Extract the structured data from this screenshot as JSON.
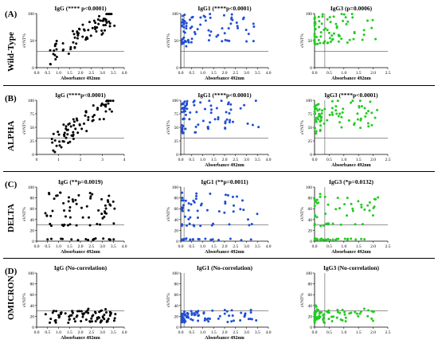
{
  "figure": {
    "rows": [
      {
        "letter": "(A)",
        "variant": "Wild-Type",
        "panels": [
          {
            "title": "IgG (**** p<0.0001)",
            "color": "#000000",
            "xlim": [
              0,
              4.0
            ],
            "xticks": [
              0,
              0.5,
              1.0,
              1.5,
              2.0,
              2.5,
              3.0,
              3.5,
              4.0
            ],
            "ylim": [
              0,
              100
            ],
            "yticks": [
              0,
              50,
              100
            ],
            "xlabel": "Absorbance 492nm",
            "ylabel": "sVNT%",
            "hline": 30,
            "vline": null,
            "seed": 11,
            "rel": "pos",
            "xdist": [
              0.4,
              3.6
            ]
          },
          {
            "title": "IgG1 (****p<0.0001)",
            "color": "#1f4fd6",
            "xlim": [
              0,
              4.0
            ],
            "xticks": [
              0,
              0.5,
              1.0,
              1.5,
              2.0,
              2.5,
              3.0,
              3.5,
              4.0
            ],
            "ylim": [
              0,
              100
            ],
            "yticks": [
              0,
              50,
              100
            ],
            "xlabel": "Absorbance 492nm",
            "ylabel": "sVNT%",
            "hline": 30,
            "vline": 0.15,
            "seed": 12,
            "rel": "weak",
            "xdist": [
              0.05,
              3.6
            ]
          },
          {
            "title": "IgG3 (p=0.0006)",
            "color": "#22cc22",
            "xlim": [
              0,
              2.5
            ],
            "xticks": [
              0,
              0.5,
              1.0,
              1.5,
              2.0,
              2.5
            ],
            "ylim": [
              0,
              100
            ],
            "yticks": [
              0,
              50,
              100
            ],
            "xlabel": "Absorbance 492nm",
            "ylabel": "sVNT%",
            "hline": 30,
            "vline": 0.35,
            "seed": 13,
            "rel": "weak",
            "xdist": [
              0.0,
              2.2
            ]
          }
        ]
      },
      {
        "letter": "(B)",
        "variant": "ALPHA",
        "panels": [
          {
            "title": "IgG (****p<0.0001)",
            "color": "#000000",
            "xlim": [
              0,
              4
            ],
            "xticks": [
              0,
              1,
              2,
              3,
              4
            ],
            "ylim": [
              0,
              100
            ],
            "yticks": [
              0,
              25,
              50,
              75,
              100
            ],
            "xlabel": "",
            "ylabel": "sVNT%",
            "hline": 30,
            "vline": null,
            "seed": 21,
            "rel": "pos",
            "xdist": [
              0.6,
              3.5
            ]
          },
          {
            "title": "IgG1 (****p<0.0001)",
            "color": "#1f4fd6",
            "xlim": [
              0,
              4.0
            ],
            "xticks": [
              0,
              0.5,
              1.0,
              1.5,
              2.0,
              2.5,
              3.0,
              3.5,
              4.0
            ],
            "ylim": [
              0,
              100
            ],
            "yticks": [
              0,
              25,
              50,
              75,
              100
            ],
            "xlabel": "Absorbance 492nm",
            "ylabel": "sVNT%",
            "hline": 30,
            "vline": 0.15,
            "seed": 22,
            "rel": "weak",
            "xdist": [
              0.05,
              3.6
            ]
          },
          {
            "title": "IgG3 (****p<0.0001)",
            "color": "#22cc22",
            "xlim": [
              0,
              2.5
            ],
            "xticks": [
              0,
              0.5,
              1.0,
              1.5,
              2.0,
              2.5
            ],
            "ylim": [
              0,
              100
            ],
            "yticks": [
              0,
              25,
              50,
              75,
              100
            ],
            "xlabel": "Absorbance 492nm",
            "ylabel": "sVNT%",
            "hline": 30,
            "vline": 0.35,
            "seed": 23,
            "rel": "weak",
            "xdist": [
              0.0,
              2.2
            ]
          }
        ]
      },
      {
        "letter": "(C)",
        "variant": "DELTA",
        "panels": [
          {
            "title": "IgG (**p=0.0019)",
            "color": "#000000",
            "xlim": [
              0,
              4.0
            ],
            "xticks": [
              0,
              0.5,
              1.0,
              1.5,
              2.0,
              2.5,
              3.0,
              3.5,
              4.0
            ],
            "ylim": [
              0,
              100
            ],
            "yticks": [
              0,
              20,
              40,
              60,
              80,
              100
            ],
            "xlabel": "Absorbance 492nm",
            "ylabel": "sVNT%",
            "hline": 30,
            "vline": null,
            "seed": 31,
            "rel": "delta",
            "xdist": [
              0.4,
              3.6
            ]
          },
          {
            "title": "IgG1 (**p=0.0011)",
            "color": "#1f4fd6",
            "xlim": [
              0,
              4.0
            ],
            "xticks": [
              0,
              0.5,
              1.0,
              1.5,
              2.0,
              2.5,
              3.0,
              3.5,
              4.0
            ],
            "ylim": [
              0,
              100
            ],
            "yticks": [
              0,
              20,
              40,
              60,
              80,
              100
            ],
            "xlabel": "Absorbance 492nm",
            "ylabel": "sVNT%",
            "hline": 30,
            "vline": 0.15,
            "seed": 32,
            "rel": "delta",
            "xdist": [
              0.05,
              3.6
            ]
          },
          {
            "title": "IgG3 (*p=0.0132)",
            "color": "#22cc22",
            "xlim": [
              0,
              2.5
            ],
            "xticks": [
              0,
              0.5,
              1.0,
              1.5,
              2.0,
              2.5
            ],
            "ylim": [
              0,
              100
            ],
            "yticks": [
              0,
              20,
              40,
              60,
              80,
              100
            ],
            "xlabel": "Absorbance 492nm",
            "ylabel": "sVNT%",
            "hline": 30,
            "vline": 0.35,
            "seed": 33,
            "rel": "delta",
            "xdist": [
              0.0,
              2.2
            ]
          }
        ]
      },
      {
        "letter": "(D)",
        "variant": "OMICRON",
        "panels": [
          {
            "title": "IgG (No-correlation)",
            "color": "#000000",
            "xlim": [
              0,
              4.0
            ],
            "xticks": [
              0,
              0.5,
              1.0,
              1.5,
              2.0,
              2.5,
              3.0,
              3.5,
              4.0
            ],
            "ylim": [
              0,
              100
            ],
            "yticks": [
              0,
              20,
              40,
              60,
              80,
              100
            ],
            "xlabel": "Absorbance 492nm",
            "ylabel": "sVNT%",
            "hline": 30,
            "vline": null,
            "seed": 41,
            "rel": "none",
            "xdist": [
              0.1,
              3.6
            ]
          },
          {
            "title": "IgG1 (No-correlation)",
            "color": "#1f4fd6",
            "xlim": [
              0,
              4.0
            ],
            "xticks": [
              0,
              0.5,
              1.0,
              1.5,
              2.0,
              2.5,
              3.0,
              3.5,
              4.0
            ],
            "ylim": [
              0,
              100
            ],
            "yticks": [
              0,
              20,
              40,
              60,
              80,
              100
            ],
            "xlabel": "Absorbance 492nm",
            "ylabel": "sVNT%",
            "hline": 30,
            "vline": 0.15,
            "seed": 42,
            "rel": "none",
            "xdist": [
              0.05,
              3.6
            ]
          },
          {
            "title": "IgG3 (No-correlation)",
            "color": "#22cc22",
            "xlim": [
              0,
              2.5
            ],
            "xticks": [
              0,
              0.5,
              1.0,
              1.5,
              2.0,
              2.5
            ],
            "ylim": [
              0,
              100
            ],
            "yticks": [
              0,
              20,
              40,
              60,
              80,
              100
            ],
            "xlabel": "",
            "ylabel": "sVNT%",
            "hline": 30,
            "vline": 0.35,
            "seed": 43,
            "rel": "none",
            "xdist": [
              0.0,
              2.2
            ]
          }
        ]
      }
    ]
  },
  "chart_data": {
    "type": "scatter",
    "note_points": "Point positions are approximate estimates read from the figure."
  }
}
